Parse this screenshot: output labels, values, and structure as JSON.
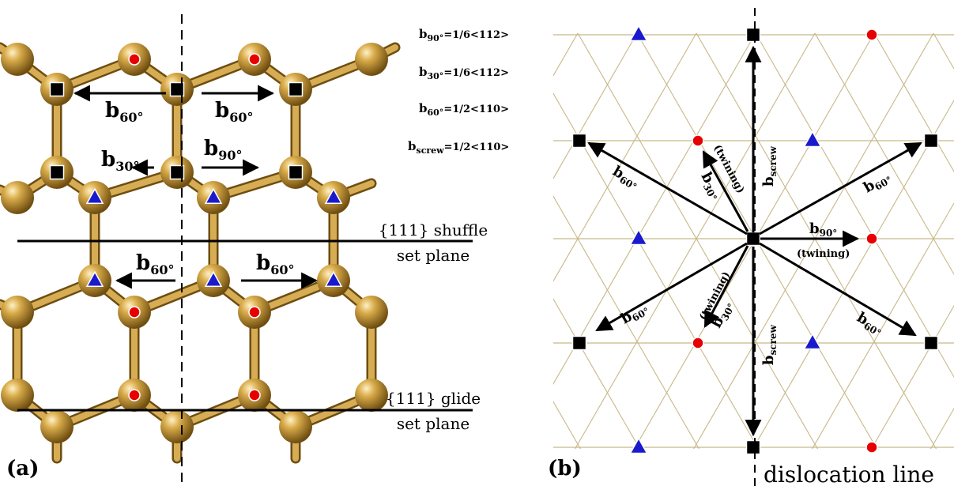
{
  "panel_a": {
    "label": "(a)",
    "vectors": {
      "b60": "b",
      "b60_sub": "60°",
      "b30": "b",
      "b30_sub": "30°",
      "b90": "b",
      "b90_sub": "90°"
    },
    "shuffle_plane": {
      "line1": "{111} shuffle",
      "line2": "set plane"
    },
    "glide_plane": {
      "line1": "{111} glide",
      "line2": "set plane"
    }
  },
  "legend": {
    "eq90": {
      "b": "b",
      "sub": "90°",
      "rest": "=1/6<112>"
    },
    "eq30": {
      "b": "b",
      "sub": "30°",
      "rest": "=1/6<112>"
    },
    "eq60": {
      "b": "b",
      "sub": "60°",
      "rest": "=1/2<110>"
    },
    "eqscrew": {
      "b": "b",
      "sub": "screw",
      "rest": "=1/2<110>"
    }
  },
  "panel_b": {
    "label": "(b)",
    "dislocation_line": "dislocation line",
    "twining": "(twining)",
    "bscrew": {
      "b": "b",
      "sub": "screw"
    },
    "b60": {
      "b": "b",
      "sub": "60°"
    },
    "b30": {
      "b": "b",
      "sub": "30°"
    },
    "b90": {
      "b": "b",
      "sub": "90°"
    }
  },
  "colors": {
    "atom": "#b8892a",
    "bond": "#b8892a",
    "red_site": "#e60000",
    "blue_site": "#1a1acc",
    "black_site": "#000000",
    "lattice_line": "#c8b888"
  }
}
